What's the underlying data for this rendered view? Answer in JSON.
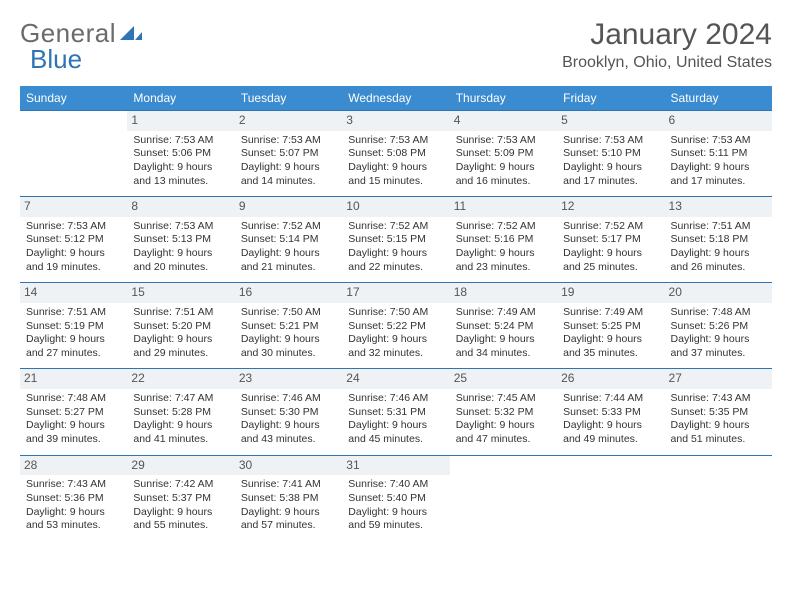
{
  "logo": {
    "word1": "General",
    "word2": "Blue"
  },
  "title": "January 2024",
  "location": "Brooklyn, Ohio, United States",
  "colors": {
    "header_bg": "#3a8bcf",
    "header_text": "#ffffff",
    "daynum_bg": "#eef2f5",
    "border": "#2f75b5",
    "logo_gray": "#6b6b6b",
    "logo_blue": "#2f75b5",
    "text": "#333333",
    "title_text": "#555555"
  },
  "weekdays": [
    "Sunday",
    "Monday",
    "Tuesday",
    "Wednesday",
    "Thursday",
    "Friday",
    "Saturday"
  ],
  "weeks": [
    [
      {
        "day": "",
        "lines": [
          "",
          "",
          "",
          ""
        ]
      },
      {
        "day": "1",
        "lines": [
          "Sunrise: 7:53 AM",
          "Sunset: 5:06 PM",
          "Daylight: 9 hours",
          "and 13 minutes."
        ]
      },
      {
        "day": "2",
        "lines": [
          "Sunrise: 7:53 AM",
          "Sunset: 5:07 PM",
          "Daylight: 9 hours",
          "and 14 minutes."
        ]
      },
      {
        "day": "3",
        "lines": [
          "Sunrise: 7:53 AM",
          "Sunset: 5:08 PM",
          "Daylight: 9 hours",
          "and 15 minutes."
        ]
      },
      {
        "day": "4",
        "lines": [
          "Sunrise: 7:53 AM",
          "Sunset: 5:09 PM",
          "Daylight: 9 hours",
          "and 16 minutes."
        ]
      },
      {
        "day": "5",
        "lines": [
          "Sunrise: 7:53 AM",
          "Sunset: 5:10 PM",
          "Daylight: 9 hours",
          "and 17 minutes."
        ]
      },
      {
        "day": "6",
        "lines": [
          "Sunrise: 7:53 AM",
          "Sunset: 5:11 PM",
          "Daylight: 9 hours",
          "and 17 minutes."
        ]
      }
    ],
    [
      {
        "day": "7",
        "lines": [
          "Sunrise: 7:53 AM",
          "Sunset: 5:12 PM",
          "Daylight: 9 hours",
          "and 19 minutes."
        ]
      },
      {
        "day": "8",
        "lines": [
          "Sunrise: 7:53 AM",
          "Sunset: 5:13 PM",
          "Daylight: 9 hours",
          "and 20 minutes."
        ]
      },
      {
        "day": "9",
        "lines": [
          "Sunrise: 7:52 AM",
          "Sunset: 5:14 PM",
          "Daylight: 9 hours",
          "and 21 minutes."
        ]
      },
      {
        "day": "10",
        "lines": [
          "Sunrise: 7:52 AM",
          "Sunset: 5:15 PM",
          "Daylight: 9 hours",
          "and 22 minutes."
        ]
      },
      {
        "day": "11",
        "lines": [
          "Sunrise: 7:52 AM",
          "Sunset: 5:16 PM",
          "Daylight: 9 hours",
          "and 23 minutes."
        ]
      },
      {
        "day": "12",
        "lines": [
          "Sunrise: 7:52 AM",
          "Sunset: 5:17 PM",
          "Daylight: 9 hours",
          "and 25 minutes."
        ]
      },
      {
        "day": "13",
        "lines": [
          "Sunrise: 7:51 AM",
          "Sunset: 5:18 PM",
          "Daylight: 9 hours",
          "and 26 minutes."
        ]
      }
    ],
    [
      {
        "day": "14",
        "lines": [
          "Sunrise: 7:51 AM",
          "Sunset: 5:19 PM",
          "Daylight: 9 hours",
          "and 27 minutes."
        ]
      },
      {
        "day": "15",
        "lines": [
          "Sunrise: 7:51 AM",
          "Sunset: 5:20 PM",
          "Daylight: 9 hours",
          "and 29 minutes."
        ]
      },
      {
        "day": "16",
        "lines": [
          "Sunrise: 7:50 AM",
          "Sunset: 5:21 PM",
          "Daylight: 9 hours",
          "and 30 minutes."
        ]
      },
      {
        "day": "17",
        "lines": [
          "Sunrise: 7:50 AM",
          "Sunset: 5:22 PM",
          "Daylight: 9 hours",
          "and 32 minutes."
        ]
      },
      {
        "day": "18",
        "lines": [
          "Sunrise: 7:49 AM",
          "Sunset: 5:24 PM",
          "Daylight: 9 hours",
          "and 34 minutes."
        ]
      },
      {
        "day": "19",
        "lines": [
          "Sunrise: 7:49 AM",
          "Sunset: 5:25 PM",
          "Daylight: 9 hours",
          "and 35 minutes."
        ]
      },
      {
        "day": "20",
        "lines": [
          "Sunrise: 7:48 AM",
          "Sunset: 5:26 PM",
          "Daylight: 9 hours",
          "and 37 minutes."
        ]
      }
    ],
    [
      {
        "day": "21",
        "lines": [
          "Sunrise: 7:48 AM",
          "Sunset: 5:27 PM",
          "Daylight: 9 hours",
          "and 39 minutes."
        ]
      },
      {
        "day": "22",
        "lines": [
          "Sunrise: 7:47 AM",
          "Sunset: 5:28 PM",
          "Daylight: 9 hours",
          "and 41 minutes."
        ]
      },
      {
        "day": "23",
        "lines": [
          "Sunrise: 7:46 AM",
          "Sunset: 5:30 PM",
          "Daylight: 9 hours",
          "and 43 minutes."
        ]
      },
      {
        "day": "24",
        "lines": [
          "Sunrise: 7:46 AM",
          "Sunset: 5:31 PM",
          "Daylight: 9 hours",
          "and 45 minutes."
        ]
      },
      {
        "day": "25",
        "lines": [
          "Sunrise: 7:45 AM",
          "Sunset: 5:32 PM",
          "Daylight: 9 hours",
          "and 47 minutes."
        ]
      },
      {
        "day": "26",
        "lines": [
          "Sunrise: 7:44 AM",
          "Sunset: 5:33 PM",
          "Daylight: 9 hours",
          "and 49 minutes."
        ]
      },
      {
        "day": "27",
        "lines": [
          "Sunrise: 7:43 AM",
          "Sunset: 5:35 PM",
          "Daylight: 9 hours",
          "and 51 minutes."
        ]
      }
    ],
    [
      {
        "day": "28",
        "lines": [
          "Sunrise: 7:43 AM",
          "Sunset: 5:36 PM",
          "Daylight: 9 hours",
          "and 53 minutes."
        ]
      },
      {
        "day": "29",
        "lines": [
          "Sunrise: 7:42 AM",
          "Sunset: 5:37 PM",
          "Daylight: 9 hours",
          "and 55 minutes."
        ]
      },
      {
        "day": "30",
        "lines": [
          "Sunrise: 7:41 AM",
          "Sunset: 5:38 PM",
          "Daylight: 9 hours",
          "and 57 minutes."
        ]
      },
      {
        "day": "31",
        "lines": [
          "Sunrise: 7:40 AM",
          "Sunset: 5:40 PM",
          "Daylight: 9 hours",
          "and 59 minutes."
        ]
      },
      {
        "day": "",
        "lines": [
          "",
          "",
          "",
          ""
        ]
      },
      {
        "day": "",
        "lines": [
          "",
          "",
          "",
          ""
        ]
      },
      {
        "day": "",
        "lines": [
          "",
          "",
          "",
          ""
        ]
      }
    ]
  ]
}
